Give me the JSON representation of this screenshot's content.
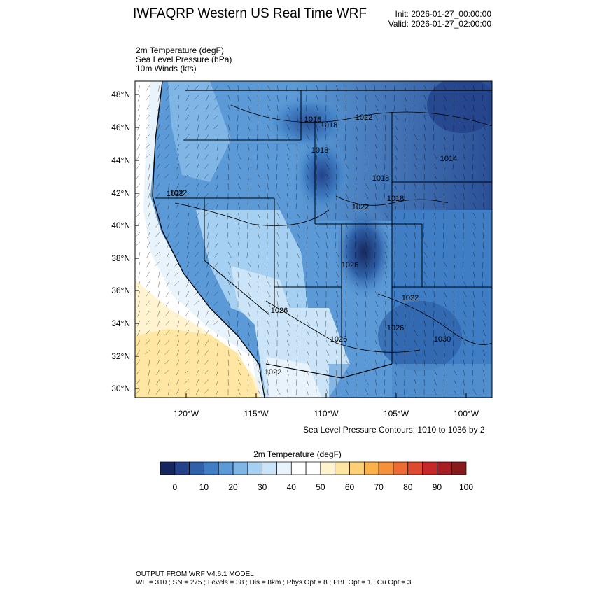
{
  "header": {
    "title": "IWFAQRP Western US Real Time WRF",
    "init": "Init: 2026-01-27_00:00:00",
    "valid": "Valid: 2026-01-27_02:00:00"
  },
  "fields": [
    "2m Temperature   (degF)",
    "Sea Level Pressure   (hPa)",
    "10m Winds   (kts)"
  ],
  "map": {
    "lat_labels": [
      "48°N",
      "46°N",
      "44°N",
      "42°N",
      "40°N",
      "38°N",
      "36°N",
      "34°N",
      "32°N",
      "30°N"
    ],
    "lon_labels": [
      "120°W",
      "115°W",
      "110°W",
      "105°W",
      "100°W"
    ],
    "slp_labels": [
      "1018",
      "1022",
      "1022",
      "1018",
      "1018",
      "1014",
      "1018",
      "1022",
      "1026",
      "1026",
      "1022",
      "1026",
      "1022",
      "1030",
      "1022",
      "1026",
      "1018"
    ],
    "slp_contours_note": "Sea Level Pressure Contours: 1010 to 1036 by 2"
  },
  "colorbar": {
    "title": "2m Temperature  (degF)",
    "tick_labels": [
      "0",
      "10",
      "20",
      "30",
      "40",
      "50",
      "60",
      "70",
      "80",
      "90",
      "100"
    ],
    "colors": [
      "#17275e",
      "#23428a",
      "#2f61a8",
      "#3f7ec4",
      "#5b9ad6",
      "#7fb6e6",
      "#a5d0f1",
      "#cbe4f7",
      "#e8f3fb",
      "#ffffff",
      "#ffffff",
      "#fff3d0",
      "#ffe6a2",
      "#fdd077",
      "#fbb24b",
      "#f5913a",
      "#ec6c33",
      "#de4a2e",
      "#c8272a",
      "#a71d23",
      "#871a1d"
    ]
  },
  "footer": {
    "line1": "OUTPUT FROM WRF V4.6.1 MODEL",
    "line2": "WE = 310 ; SN = 275 ; Levels = 38 ; Dis = 8km ; Phys Opt = 8 ; PBL Opt = 1 ; Cu Opt = 3"
  }
}
